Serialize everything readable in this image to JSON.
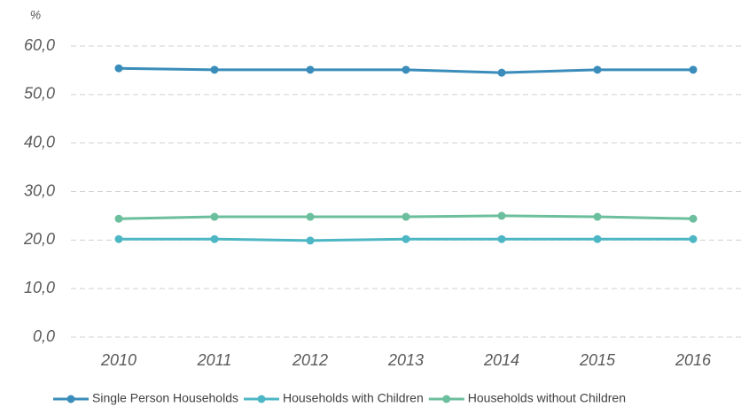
{
  "chart_data": {
    "type": "line",
    "y_label": "%",
    "categories": [
      "2010",
      "2011",
      "2012",
      "2013",
      "2014",
      "2015",
      "2016"
    ],
    "series": [
      {
        "name": "Single Person Households",
        "color": "#3a8dba",
        "values": [
          55.4,
          55.1,
          55.1,
          55.1,
          54.5,
          55.1,
          55.1
        ]
      },
      {
        "name": "Households with Children",
        "color": "#4db6c4",
        "values": [
          20.2,
          20.2,
          19.9,
          20.2,
          20.2,
          20.2,
          20.2
        ]
      },
      {
        "name": "Households without Children",
        "color": "#6cbf9c",
        "values": [
          24.4,
          24.8,
          24.8,
          24.8,
          25.0,
          24.8,
          24.4
        ]
      }
    ],
    "ylim": [
      0,
      60
    ],
    "yticks": [
      {
        "value": 0,
        "label": "0,0"
      },
      {
        "value": 10,
        "label": "10,0"
      },
      {
        "value": 20,
        "label": "20,0"
      },
      {
        "value": 30,
        "label": "30,0"
      },
      {
        "value": 40,
        "label": "40,0"
      },
      {
        "value": 50,
        "label": "50,0"
      },
      {
        "value": 60,
        "label": "60,0"
      }
    ],
    "grid": true,
    "legend": "bottom"
  }
}
